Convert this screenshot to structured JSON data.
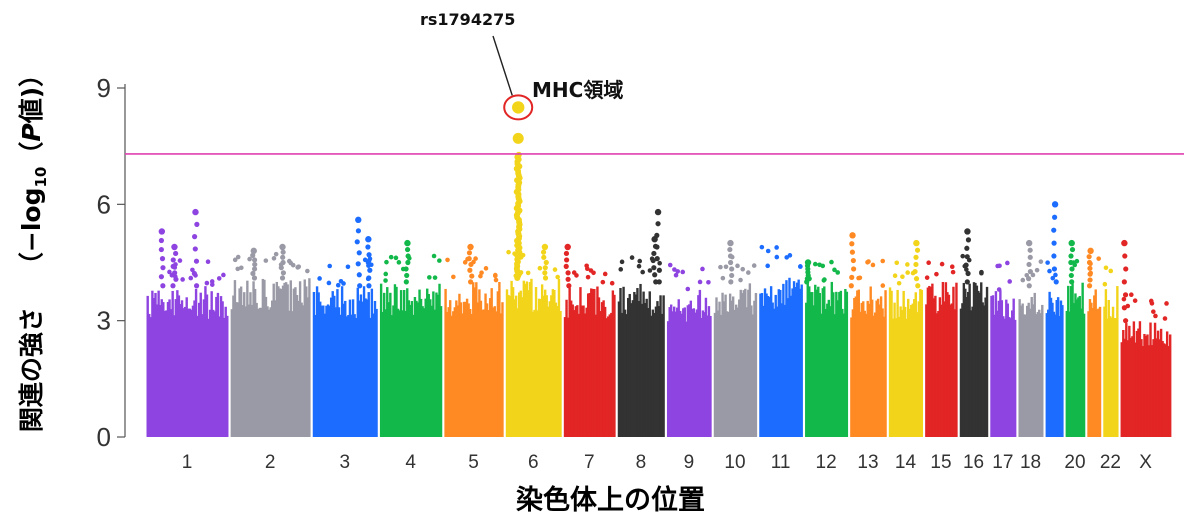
{
  "chart_data": {
    "type": "scatter",
    "subtype": "manhattan",
    "xlabel": "染色体上の位置",
    "ylabel": {
      "part1": "関連の強さ",
      "prefix": "（−log",
      "sub": "10",
      "open": "（",
      "var": "P",
      "suffix": "値)）"
    },
    "ylim": [
      0,
      9.3
    ],
    "yticks": [
      "0",
      "3",
      "6",
      "9"
    ],
    "significance_line": 7.3,
    "significance_color": "#e040b0",
    "grid": false,
    "chromosomes": [
      {
        "label": "1",
        "show_label": true,
        "color": "#8e44e0",
        "rel_len": 248,
        "base_max": 3.9
      },
      {
        "label": "2",
        "show_label": true,
        "color": "#9a9aa6",
        "rel_len": 242,
        "base_max": 4.1
      },
      {
        "label": "3",
        "show_label": true,
        "color": "#1c6dff",
        "rel_len": 198,
        "base_max": 3.9
      },
      {
        "label": "4",
        "show_label": true,
        "color": "#12b84a",
        "rel_len": 190,
        "base_max": 4.0
      },
      {
        "label": "5",
        "show_label": true,
        "color": "#ff8a24",
        "rel_len": 181,
        "base_max": 4.0
      },
      {
        "label": "6",
        "show_label": true,
        "color": "#f2d41a",
        "rel_len": 171,
        "base_max": 4.1
      },
      {
        "label": "7",
        "show_label": true,
        "color": "#e22525",
        "rel_len": 159,
        "base_max": 3.9
      },
      {
        "label": "8",
        "show_label": true,
        "color": "#333333",
        "rel_len": 145,
        "base_max": 4.0
      },
      {
        "label": "9",
        "show_label": true,
        "color": "#8e44e0",
        "rel_len": 138,
        "base_max": 3.8
      },
      {
        "label": "10",
        "show_label": true,
        "color": "#9a9aa6",
        "rel_len": 134,
        "base_max": 4.0
      },
      {
        "label": "11",
        "show_label": true,
        "color": "#1c6dff",
        "rel_len": 135,
        "base_max": 4.2
      },
      {
        "label": "12",
        "show_label": true,
        "color": "#12b84a",
        "rel_len": 133,
        "base_max": 4.0
      },
      {
        "label": "13",
        "show_label": true,
        "color": "#ff8a24",
        "rel_len": 114,
        "base_max": 3.9
      },
      {
        "label": "14",
        "show_label": true,
        "color": "#f2d41a",
        "rel_len": 107,
        "base_max": 3.9
      },
      {
        "label": "15",
        "show_label": true,
        "color": "#e22525",
        "rel_len": 102,
        "base_max": 4.0
      },
      {
        "label": "16",
        "show_label": true,
        "color": "#333333",
        "rel_len": 90,
        "base_max": 4.0
      },
      {
        "label": "17",
        "show_label": true,
        "color": "#8e44e0",
        "rel_len": 83,
        "base_max": 3.8
      },
      {
        "label": "18",
        "show_label": true,
        "color": "#9a9aa6",
        "rel_len": 80,
        "base_max": 3.9
      },
      {
        "label": "19",
        "show_label": false,
        "color": "#1c6dff",
        "rel_len": 59,
        "base_max": 4.0
      },
      {
        "label": "20",
        "show_label": true,
        "color": "#12b84a",
        "rel_len": 64,
        "base_max": 4.0
      },
      {
        "label": "21",
        "show_label": false,
        "color": "#ff8a24",
        "rel_len": 47,
        "base_max": 3.9
      },
      {
        "label": "22",
        "show_label": true,
        "color": "#f2d41a",
        "rel_len": 51,
        "base_max": 3.9
      },
      {
        "label": "X",
        "show_label": true,
        "color": "#e22525",
        "rel_len": 156,
        "base_max": 3.0
      }
    ],
    "peaks": [
      {
        "chr": "1",
        "pos": 0.2,
        "y": 5.3
      },
      {
        "chr": "1",
        "pos": 0.35,
        "y": 4.9
      },
      {
        "chr": "1",
        "pos": 0.6,
        "y": 5.8
      },
      {
        "chr": "2",
        "pos": 0.3,
        "y": 4.8
      },
      {
        "chr": "2",
        "pos": 0.65,
        "y": 4.9
      },
      {
        "chr": "3",
        "pos": 0.7,
        "y": 5.6
      },
      {
        "chr": "3",
        "pos": 0.85,
        "y": 5.1
      },
      {
        "chr": "4",
        "pos": 0.45,
        "y": 5.0
      },
      {
        "chr": "5",
        "pos": 0.45,
        "y": 4.9
      },
      {
        "chr": "6",
        "pos": 0.7,
        "y": 4.9
      },
      {
        "chr": "7",
        "pos": 0.1,
        "y": 4.9
      },
      {
        "chr": "8",
        "pos": 0.78,
        "y": 5.1
      },
      {
        "chr": "8",
        "pos": 0.85,
        "y": 5.8
      },
      {
        "chr": "10",
        "pos": 0.4,
        "y": 5.0
      },
      {
        "chr": "12",
        "pos": 0.1,
        "y": 4.5
      },
      {
        "chr": "13",
        "pos": 0.1,
        "y": 5.2
      },
      {
        "chr": "14",
        "pos": 0.8,
        "y": 5.0
      },
      {
        "chr": "16",
        "pos": 0.3,
        "y": 5.3
      },
      {
        "chr": "18",
        "pos": 0.45,
        "y": 5.0
      },
      {
        "chr": "19",
        "pos": 0.55,
        "y": 6.0
      },
      {
        "chr": "20",
        "pos": 0.35,
        "y": 5.0
      },
      {
        "chr": "21",
        "pos": 0.3,
        "y": 4.8
      },
      {
        "chr": "X",
        "pos": 0.1,
        "y": 5.0
      }
    ],
    "mhc": {
      "chr": "6",
      "pos": 0.24,
      "top_points": [
        8.5,
        7.7
      ],
      "column_max": 7.3,
      "label": "MHC領域",
      "snp_label": "rs1794275",
      "highlight_color": "#e22525"
    }
  }
}
